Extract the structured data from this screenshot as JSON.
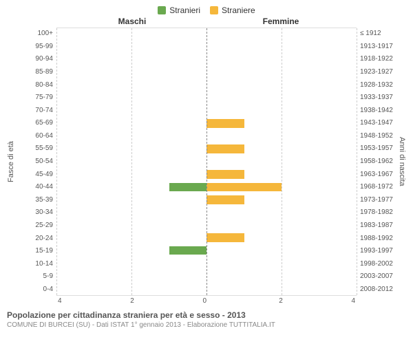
{
  "legend": {
    "male": {
      "label": "Stranieri",
      "color": "#6aa94f"
    },
    "female": {
      "label": "Straniere",
      "color": "#f5b73b"
    }
  },
  "column_headers": {
    "left": "Maschi",
    "right": "Femmine"
  },
  "axis_left_title": "Fasce di età",
  "axis_right_title": "Anni di nascita",
  "age_labels": [
    "100+",
    "95-99",
    "90-94",
    "85-89",
    "80-84",
    "75-79",
    "70-74",
    "65-69",
    "60-64",
    "55-59",
    "50-54",
    "45-49",
    "40-44",
    "35-39",
    "30-34",
    "25-29",
    "20-24",
    "15-19",
    "10-14",
    "5-9",
    "0-4"
  ],
  "birth_labels": [
    "≤ 1912",
    "1913-1917",
    "1918-1922",
    "1923-1927",
    "1928-1932",
    "1933-1937",
    "1938-1942",
    "1943-1947",
    "1948-1952",
    "1953-1957",
    "1958-1962",
    "1963-1967",
    "1968-1972",
    "1973-1977",
    "1978-1982",
    "1983-1987",
    "1988-1992",
    "1993-1997",
    "1998-2002",
    "2003-2007",
    "2008-2012"
  ],
  "chart": {
    "type": "bar-pyramid",
    "x_max": 4,
    "x_ticks": [
      4,
      2,
      0,
      2,
      4
    ],
    "bar_colors": {
      "male": "#6aa94f",
      "female": "#f5b73b"
    },
    "grid_color": "#cccccc",
    "center_color": "#888888",
    "background_color": "#ffffff",
    "rows": [
      {
        "m": 0,
        "f": 0
      },
      {
        "m": 0,
        "f": 0
      },
      {
        "m": 0,
        "f": 0
      },
      {
        "m": 0,
        "f": 0
      },
      {
        "m": 0,
        "f": 0
      },
      {
        "m": 0,
        "f": 0
      },
      {
        "m": 0,
        "f": 0
      },
      {
        "m": 0,
        "f": 1
      },
      {
        "m": 0,
        "f": 0
      },
      {
        "m": 0,
        "f": 1
      },
      {
        "m": 0,
        "f": 0
      },
      {
        "m": 0,
        "f": 1
      },
      {
        "m": 1,
        "f": 2
      },
      {
        "m": 0,
        "f": 1
      },
      {
        "m": 0,
        "f": 0
      },
      {
        "m": 0,
        "f": 0
      },
      {
        "m": 0,
        "f": 1
      },
      {
        "m": 1,
        "f": 0
      },
      {
        "m": 0,
        "f": 0
      },
      {
        "m": 0,
        "f": 0
      },
      {
        "m": 0,
        "f": 0
      }
    ]
  },
  "title": "Popolazione per cittadinanza straniera per età e sesso - 2013",
  "subtitle": "COMUNE DI BURCEI (SU) - Dati ISTAT 1° gennaio 2013 - Elaborazione TUTTITALIA.IT"
}
